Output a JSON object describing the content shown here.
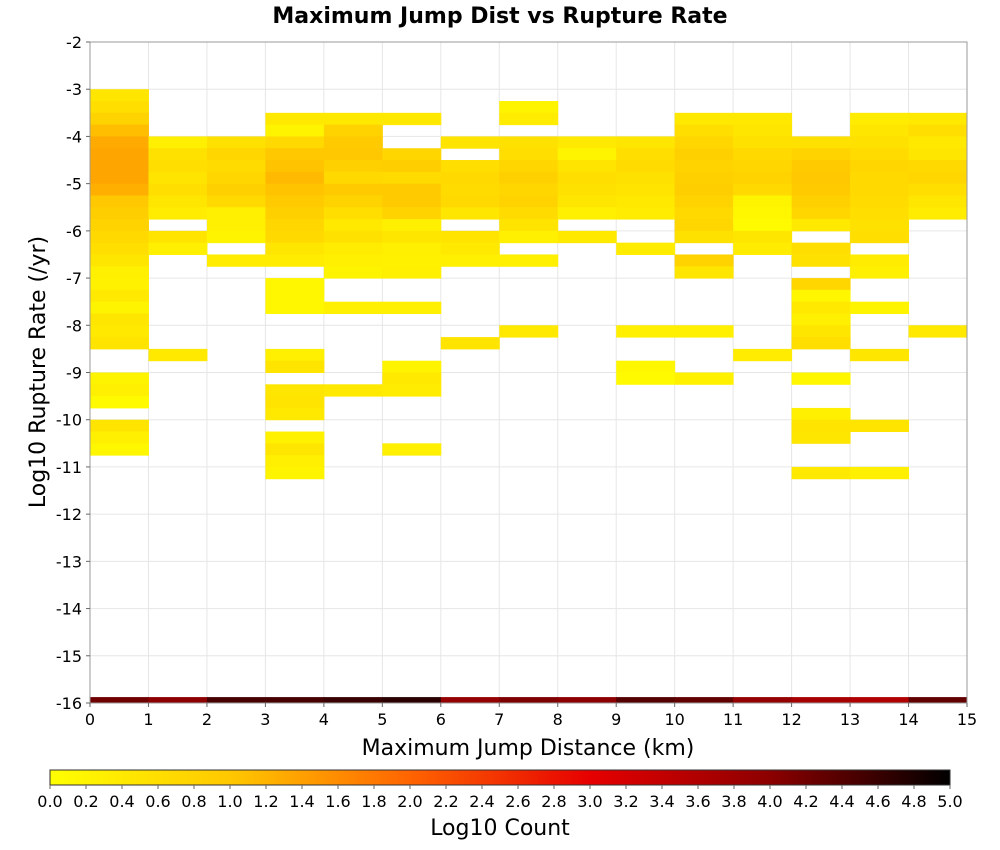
{
  "chart_data": {
    "type": "heatmap",
    "title": "Maximum Jump Dist vs Rupture Rate",
    "xlabel": "Maximum Jump Distance (km)",
    "ylabel": "Log10 Rupture Rate (/yr)",
    "xlim": [
      0,
      15
    ],
    "ylim": [
      -16,
      -2
    ],
    "x_ticks": [
      "0",
      "1",
      "2",
      "3",
      "4",
      "5",
      "6",
      "7",
      "8",
      "9",
      "10",
      "11",
      "12",
      "13",
      "14",
      "15"
    ],
    "y_ticks": [
      "-2",
      "-3",
      "-4",
      "-5",
      "-6",
      "-7",
      "-8",
      "-9",
      "-10",
      "-11",
      "-12",
      "-13",
      "-14",
      "-15",
      "-16"
    ],
    "x_bin_width": 1,
    "y_bin_height": 0.25,
    "grid": true,
    "colorbar": {
      "label": "Log10 Count",
      "min": 0.0,
      "max": 5.0,
      "ticks": [
        "0.0",
        "0.2",
        "0.4",
        "0.6",
        "0.8",
        "1.0",
        "1.2",
        "1.4",
        "1.6",
        "1.8",
        "2.0",
        "2.2",
        "2.4",
        "2.6",
        "2.8",
        "3.0",
        "3.2",
        "3.4",
        "3.6",
        "3.8",
        "4.0",
        "4.2",
        "4.4",
        "4.6",
        "4.8",
        "5.0"
      ],
      "colors": [
        "#ffff00",
        "#ffc800",
        "#ff6400",
        "#e60000",
        "#8c0000",
        "#000000"
      ]
    },
    "columns": [
      [
        [
          -3.125,
          0.45
        ],
        [
          -3.375,
          0.6
        ],
        [
          -3.625,
          0.8
        ],
        [
          -3.875,
          1.1
        ],
        [
          -4.125,
          1.3
        ],
        [
          -4.375,
          1.35
        ],
        [
          -4.625,
          1.35
        ],
        [
          -4.875,
          1.35
        ],
        [
          -5.125,
          1.25
        ],
        [
          -5.375,
          1.0
        ],
        [
          -5.625,
          0.9
        ],
        [
          -5.875,
          0.8
        ],
        [
          -6.125,
          0.7
        ],
        [
          -6.375,
          0.6
        ],
        [
          -6.625,
          0.45
        ],
        [
          -6.875,
          0.3
        ],
        [
          -7.125,
          0.25
        ],
        [
          -7.375,
          0.4
        ],
        [
          -7.625,
          0.2
        ],
        [
          -7.875,
          0.45
        ],
        [
          -8.125,
          0.4
        ],
        [
          -8.375,
          0.5
        ],
        [
          -9.125,
          0.2
        ],
        [
          -9.375,
          0.3
        ],
        [
          -9.625,
          0.1
        ],
        [
          -10.125,
          0.5
        ],
        [
          -10.375,
          0.3
        ],
        [
          -10.625,
          0.15
        ],
        [
          -16.0,
          4.2
        ]
      ],
      [
        [
          -4.125,
          0.3
        ],
        [
          -4.375,
          0.55
        ],
        [
          -4.625,
          0.6
        ],
        [
          -4.875,
          0.5
        ],
        [
          -5.125,
          0.6
        ],
        [
          -5.375,
          0.45
        ],
        [
          -5.625,
          0.35
        ],
        [
          -6.125,
          0.5
        ],
        [
          -6.375,
          0.3
        ],
        [
          -8.625,
          0.4
        ],
        [
          -16.0,
          4.0
        ]
      ],
      [
        [
          -4.125,
          0.55
        ],
        [
          -4.375,
          0.75
        ],
        [
          -4.625,
          0.65
        ],
        [
          -4.875,
          0.75
        ],
        [
          -5.125,
          0.85
        ],
        [
          -5.375,
          0.7
        ],
        [
          -5.625,
          0.3
        ],
        [
          -5.875,
          0.3
        ],
        [
          -6.125,
          0.2
        ],
        [
          -6.625,
          0.35
        ],
        [
          -16.0,
          4.5
        ]
      ],
      [
        [
          -3.625,
          0.4
        ],
        [
          -3.875,
          0.2
        ],
        [
          -4.125,
          0.7
        ],
        [
          -4.375,
          1.0
        ],
        [
          -4.625,
          1.05
        ],
        [
          -4.875,
          1.15
        ],
        [
          -5.125,
          1.05
        ],
        [
          -5.375,
          0.95
        ],
        [
          -5.625,
          0.85
        ],
        [
          -5.875,
          0.75
        ],
        [
          -6.125,
          0.7
        ],
        [
          -6.375,
          0.45
        ],
        [
          -6.625,
          0.35
        ],
        [
          -7.125,
          0.15
        ],
        [
          -7.375,
          0.15
        ],
        [
          -7.625,
          0.15
        ],
        [
          -8.625,
          0.3
        ],
        [
          -8.875,
          0.5
        ],
        [
          -9.375,
          0.45
        ],
        [
          -9.625,
          0.5
        ],
        [
          -9.875,
          0.4
        ],
        [
          -10.375,
          0.25
        ],
        [
          -10.625,
          0.45
        ],
        [
          -10.875,
          0.3
        ],
        [
          -11.125,
          0.2
        ],
        [
          -16.0,
          4.5
        ]
      ],
      [
        [
          -3.625,
          0.4
        ],
        [
          -3.875,
          0.8
        ],
        [
          -4.125,
          0.95
        ],
        [
          -4.375,
          1.0
        ],
        [
          -4.625,
          0.85
        ],
        [
          -4.875,
          0.7
        ],
        [
          -5.125,
          0.95
        ],
        [
          -5.375,
          0.8
        ],
        [
          -5.625,
          0.6
        ],
        [
          -5.875,
          0.4
        ],
        [
          -6.125,
          0.55
        ],
        [
          -6.375,
          0.35
        ],
        [
          -6.625,
          0.3
        ],
        [
          -6.875,
          0.2
        ],
        [
          -7.625,
          0.3
        ],
        [
          -9.375,
          0.4
        ],
        [
          -16.0,
          4.6
        ]
      ],
      [
        [
          -3.625,
          0.4
        ],
        [
          -4.375,
          0.75
        ],
        [
          -4.625,
          0.9
        ],
        [
          -4.875,
          0.65
        ],
        [
          -5.125,
          0.95
        ],
        [
          -5.375,
          0.95
        ],
        [
          -5.625,
          0.8
        ],
        [
          -5.875,
          0.3
        ],
        [
          -6.125,
          0.45
        ],
        [
          -6.375,
          0.3
        ],
        [
          -6.625,
          0.25
        ],
        [
          -6.875,
          0.3
        ],
        [
          -7.625,
          0.3
        ],
        [
          -8.875,
          0.2
        ],
        [
          -9.125,
          0.4
        ],
        [
          -9.375,
          0.35
        ],
        [
          -10.625,
          0.3
        ],
        [
          -16.0,
          4.7
        ]
      ],
      [
        [
          -4.125,
          0.5
        ],
        [
          -4.625,
          0.6
        ],
        [
          -4.875,
          0.7
        ],
        [
          -5.125,
          0.65
        ],
        [
          -5.375,
          0.7
        ],
        [
          -5.625,
          0.45
        ],
        [
          -6.125,
          0.5
        ],
        [
          -6.375,
          0.4
        ],
        [
          -6.625,
          0.3
        ],
        [
          -8.375,
          0.5
        ],
        [
          -16.0,
          3.9
        ]
      ],
      [
        [
          -3.375,
          0.2
        ],
        [
          -3.625,
          0.35
        ],
        [
          -4.125,
          0.55
        ],
        [
          -4.375,
          0.6
        ],
        [
          -4.625,
          0.75
        ],
        [
          -4.875,
          0.85
        ],
        [
          -5.125,
          0.75
        ],
        [
          -5.375,
          0.8
        ],
        [
          -5.625,
          0.65
        ],
        [
          -5.875,
          0.5
        ],
        [
          -6.125,
          0.3
        ],
        [
          -6.625,
          0.3
        ],
        [
          -8.125,
          0.4
        ],
        [
          -16.0,
          4.1
        ]
      ],
      [
        [
          -4.125,
          0.4
        ],
        [
          -4.375,
          0.2
        ],
        [
          -4.625,
          0.5
        ],
        [
          -4.875,
          0.6
        ],
        [
          -5.125,
          0.55
        ],
        [
          -5.375,
          0.45
        ],
        [
          -5.625,
          0.3
        ],
        [
          -6.125,
          0.4
        ],
        [
          -16.0,
          4.0
        ]
      ],
      [
        [
          -4.125,
          0.45
        ],
        [
          -4.375,
          0.6
        ],
        [
          -4.625,
          0.65
        ],
        [
          -4.875,
          0.55
        ],
        [
          -5.125,
          0.5
        ],
        [
          -5.375,
          0.4
        ],
        [
          -5.625,
          0.35
        ],
        [
          -6.375,
          0.35
        ],
        [
          -8.125,
          0.3
        ],
        [
          -8.875,
          0.15
        ],
        [
          -9.125,
          0.1
        ],
        [
          -16.0,
          4.4
        ]
      ],
      [
        [
          -3.625,
          0.4
        ],
        [
          -3.875,
          0.6
        ],
        [
          -4.125,
          0.75
        ],
        [
          -4.375,
          0.85
        ],
        [
          -4.625,
          0.8
        ],
        [
          -4.875,
          0.85
        ],
        [
          -5.125,
          0.9
        ],
        [
          -5.375,
          0.8
        ],
        [
          -5.625,
          0.7
        ],
        [
          -5.875,
          0.75
        ],
        [
          -6.125,
          0.55
        ],
        [
          -6.625,
          0.8
        ],
        [
          -6.875,
          0.45
        ],
        [
          -8.125,
          0.3
        ],
        [
          -9.125,
          0.25
        ],
        [
          -16.0,
          4.3
        ]
      ],
      [
        [
          -3.625,
          0.4
        ],
        [
          -3.875,
          0.45
        ],
        [
          -4.125,
          0.55
        ],
        [
          -4.375,
          0.7
        ],
        [
          -4.625,
          0.75
        ],
        [
          -4.875,
          0.8
        ],
        [
          -5.125,
          0.7
        ],
        [
          -5.375,
          0.2
        ],
        [
          -5.625,
          0.15
        ],
        [
          -5.875,
          0.1
        ],
        [
          -6.125,
          0.45
        ],
        [
          -6.375,
          0.35
        ],
        [
          -8.625,
          0.35
        ],
        [
          -16.0,
          3.9
        ]
      ],
      [
        [
          -4.125,
          0.55
        ],
        [
          -4.375,
          0.8
        ],
        [
          -4.625,
          0.95
        ],
        [
          -4.875,
          1.0
        ],
        [
          -5.125,
          0.95
        ],
        [
          -5.375,
          0.85
        ],
        [
          -5.625,
          0.75
        ],
        [
          -5.875,
          0.4
        ],
        [
          -6.375,
          0.6
        ],
        [
          -6.625,
          0.55
        ],
        [
          -7.125,
          0.75
        ],
        [
          -7.375,
          0.15
        ],
        [
          -7.625,
          0.4
        ],
        [
          -7.875,
          0.3
        ],
        [
          -8.125,
          0.45
        ],
        [
          -8.375,
          0.6
        ],
        [
          -9.125,
          0.15
        ],
        [
          -9.875,
          0.3
        ],
        [
          -10.125,
          0.5
        ],
        [
          -10.375,
          0.45
        ],
        [
          -11.125,
          0.4
        ],
        [
          -16.0,
          3.7
        ]
      ],
      [
        [
          -3.625,
          0.35
        ],
        [
          -3.875,
          0.45
        ],
        [
          -4.125,
          0.55
        ],
        [
          -4.375,
          0.65
        ],
        [
          -4.625,
          0.75
        ],
        [
          -4.875,
          0.7
        ],
        [
          -5.125,
          0.7
        ],
        [
          -5.375,
          0.65
        ],
        [
          -5.625,
          0.6
        ],
        [
          -5.875,
          0.55
        ],
        [
          -6.125,
          0.6
        ],
        [
          -6.625,
          0.35
        ],
        [
          -6.875,
          0.3
        ],
        [
          -7.625,
          0.2
        ],
        [
          -8.625,
          0.45
        ],
        [
          -10.125,
          0.5
        ],
        [
          -11.125,
          0.3
        ],
        [
          -16.0,
          3.6
        ]
      ],
      [
        [
          -3.625,
          0.4
        ],
        [
          -3.875,
          0.6
        ],
        [
          -4.125,
          0.4
        ],
        [
          -4.375,
          0.45
        ],
        [
          -4.625,
          0.7
        ],
        [
          -4.875,
          0.75
        ],
        [
          -5.125,
          0.6
        ],
        [
          -5.375,
          0.45
        ],
        [
          -5.625,
          0.35
        ],
        [
          -8.125,
          0.4
        ],
        [
          -16.0,
          4.3
        ]
      ]
    ]
  }
}
